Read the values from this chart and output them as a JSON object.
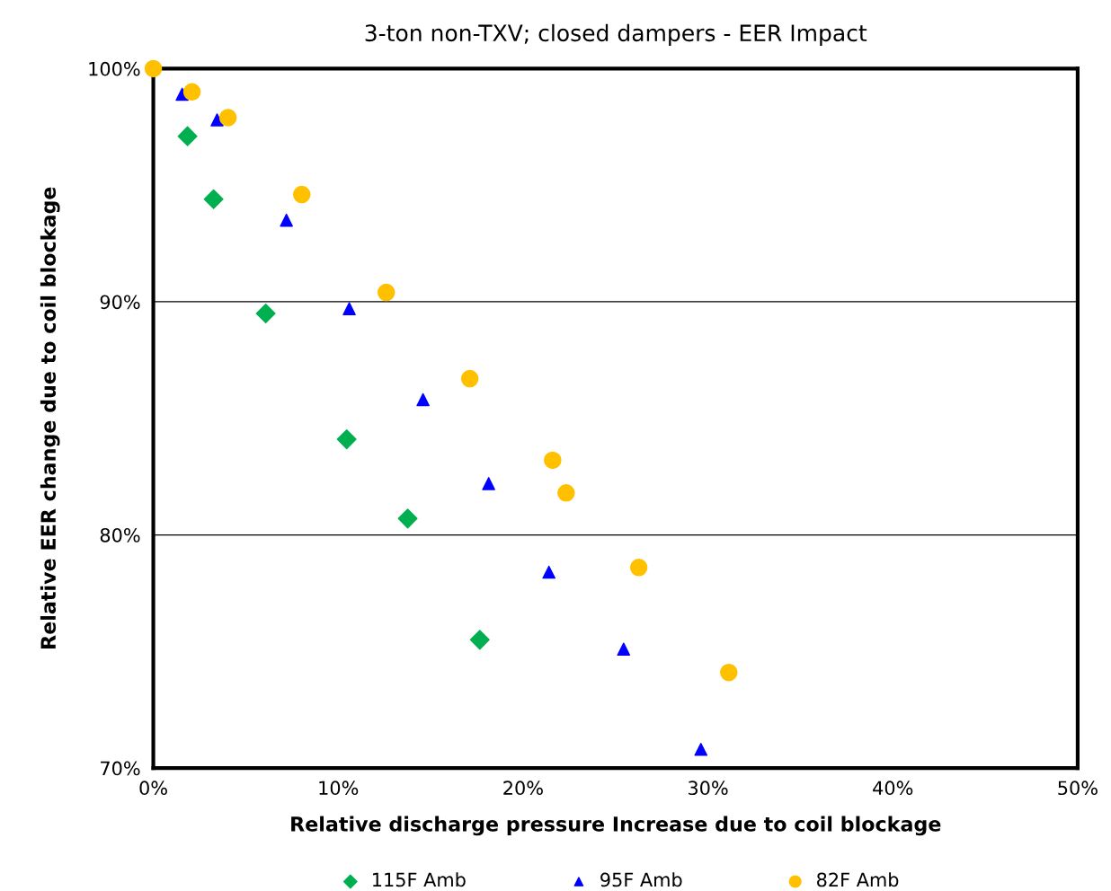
{
  "chart_data": {
    "type": "scatter",
    "title": "3-ton non-TXV; closed dampers - EER Impact",
    "xlabel": "Relative discharge pressure Increase due to coil blockage",
    "ylabel": "Relative EER change due to coil blockage",
    "xlim": [
      0,
      50
    ],
    "ylim": [
      70,
      100
    ],
    "xticks": [
      {
        "value": 0,
        "label": "0%"
      },
      {
        "value": 10,
        "label": "10%"
      },
      {
        "value": 20,
        "label": "20%"
      },
      {
        "value": 30,
        "label": "30%"
      },
      {
        "value": 40,
        "label": "40%"
      },
      {
        "value": 50,
        "label": "50%"
      }
    ],
    "yticks": [
      {
        "value": 70,
        "label": "70%"
      },
      {
        "value": 80,
        "label": "80%"
      },
      {
        "value": 90,
        "label": "90%"
      },
      {
        "value": 100,
        "label": "100%"
      }
    ],
    "grid": "y",
    "legend": "bottom",
    "series": [
      {
        "name": "115F Amb",
        "color": "#00b050",
        "marker": "diamond",
        "x": [
          1.85,
          3.26,
          6.08,
          10.46,
          13.76,
          17.66
        ],
        "values": [
          97.1,
          94.4,
          89.5,
          84.1,
          80.7,
          75.5
        ]
      },
      {
        "name": "95F Amb",
        "color": "#0000ff",
        "marker": "triangle",
        "x": [
          1.56,
          3.45,
          7.2,
          10.6,
          14.59,
          18.14,
          21.4,
          25.44,
          29.62
        ],
        "values": [
          98.9,
          97.8,
          93.5,
          89.7,
          85.8,
          82.2,
          78.4,
          75.1,
          70.8
        ]
      },
      {
        "name": "82F Amb",
        "color": "#ffc000",
        "marker": "circle",
        "x": [
          0,
          2.09,
          4.04,
          8.03,
          12.6,
          17.12,
          21.6,
          22.33,
          26.26,
          31.13
        ],
        "values": [
          100,
          99.0,
          97.9,
          94.6,
          90.4,
          86.7,
          83.2,
          81.8,
          78.6,
          74.1
        ]
      }
    ]
  }
}
